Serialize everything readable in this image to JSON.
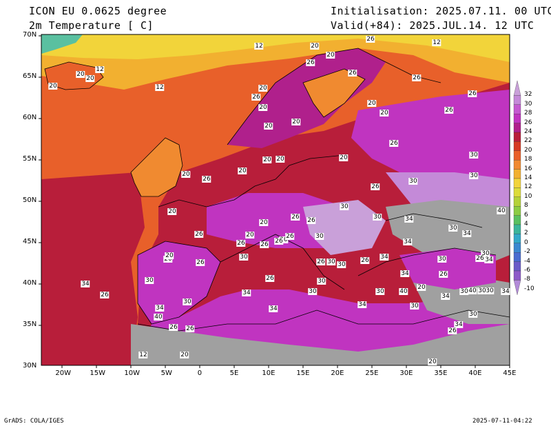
{
  "header": {
    "model": "ICON EU 0.0625 degree",
    "variable": "2m Temperature [ C]",
    "init": "Initialisation: 2025.07.11. 00 UTC",
    "valid": "Valid(+84): 2025.JUL.14. 12 UTC"
  },
  "axes": {
    "x_labels": [
      "20W",
      "15W",
      "10W",
      "5W",
      "0",
      "5E",
      "10E",
      "15E",
      "20E",
      "25E",
      "30E",
      "35E",
      "40E",
      "45E"
    ],
    "y_labels": [
      "70N",
      "65N",
      "60N",
      "55N",
      "50N",
      "45N",
      "40N",
      "35N",
      "30N"
    ],
    "xlim": [
      -23,
      45
    ],
    "ylim": [
      30,
      70
    ]
  },
  "colorbar": {
    "labels": [
      "32",
      "30",
      "28",
      "26",
      "24",
      "22",
      "20",
      "18",
      "16",
      "14",
      "12",
      "10",
      "8",
      "6",
      "4",
      "2",
      "0",
      "-2",
      "-4",
      "-6",
      "-8",
      "-10"
    ],
    "colors": [
      "#c9a0d9",
      "#c48ad8",
      "#c45ad0",
      "#c034c0",
      "#b0208c",
      "#b81e3a",
      "#d63a24",
      "#e8602a",
      "#f08a30",
      "#f2b030",
      "#f2d43a",
      "#dcdc3a",
      "#b4d23a",
      "#8ccc44",
      "#5ac060",
      "#3cb49a",
      "#34a8c8",
      "#3c88d0",
      "#4a6cd0",
      "#6a5cc8",
      "#8c5ac8",
      "#b28ad8"
    ],
    "sea_gray": "#a0a0a0"
  },
  "contour_labels": [
    {
      "t": "12"
    },
    {
      "t": "20"
    },
    {
      "t": "26"
    },
    {
      "t": "20"
    },
    {
      "t": "12"
    },
    {
      "t": "20"
    },
    {
      "t": "20"
    },
    {
      "t": "12"
    },
    {
      "t": "20"
    },
    {
      "t": "12"
    },
    {
      "t": "26"
    },
    {
      "t": "26"
    },
    {
      "t": "26"
    },
    {
      "t": "20"
    },
    {
      "t": "20"
    },
    {
      "t": "26"
    },
    {
      "t": "20"
    },
    {
      "t": "20"
    },
    {
      "t": "20"
    },
    {
      "t": "20"
    },
    {
      "t": "26"
    },
    {
      "t": "20"
    },
    {
      "t": "20"
    },
    {
      "t": "20"
    },
    {
      "t": "26"
    },
    {
      "t": "20"
    },
    {
      "t": "26"
    },
    {
      "t": "26"
    },
    {
      "t": "30"
    },
    {
      "t": "30"
    },
    {
      "t": "26"
    },
    {
      "t": "20"
    },
    {
      "t": "30"
    },
    {
      "t": "30"
    },
    {
      "t": "20"
    },
    {
      "t": "20"
    },
    {
      "t": "26"
    },
    {
      "t": "26"
    },
    {
      "t": "30"
    },
    {
      "t": "34"
    },
    {
      "t": "30"
    },
    {
      "t": "26"
    },
    {
      "t": "34"
    },
    {
      "t": "34"
    },
    {
      "t": "40"
    },
    {
      "t": "30"
    },
    {
      "t": "26"
    },
    {
      "t": "20"
    },
    {
      "t": "26"
    },
    {
      "t": "26"
    },
    {
      "t": "26"
    },
    {
      "t": "30"
    },
    {
      "t": "20"
    },
    {
      "t": "20"
    },
    {
      "t": "30"
    },
    {
      "t": "26"
    },
    {
      "t": "26"
    },
    {
      "t": "30"
    },
    {
      "t": "26"
    },
    {
      "t": "30"
    },
    {
      "t": "30"
    },
    {
      "t": "34"
    },
    {
      "t": "30"
    },
    {
      "t": "26"
    },
    {
      "t": "34"
    },
    {
      "t": "26"
    },
    {
      "t": "30"
    },
    {
      "t": "34"
    },
    {
      "t": "26"
    },
    {
      "t": "30"
    },
    {
      "t": "34"
    },
    {
      "t": "26"
    },
    {
      "t": "30"
    },
    {
      "t": "30"
    },
    {
      "t": "34"
    },
    {
      "t": "30"
    },
    {
      "t": "34"
    },
    {
      "t": "30"
    },
    {
      "t": "40"
    },
    {
      "t": "30"
    },
    {
      "t": "34"
    },
    {
      "t": "40"
    },
    {
      "t": "30"
    },
    {
      "t": "34"
    },
    {
      "t": "30"
    },
    {
      "t": "34"
    },
    {
      "t": "40"
    },
    {
      "t": "34"
    },
    {
      "t": "30"
    },
    {
      "t": "34"
    },
    {
      "t": "26"
    },
    {
      "t": "20"
    },
    {
      "t": "26"
    },
    {
      "t": "26"
    },
    {
      "t": "20"
    },
    {
      "t": "12"
    },
    {
      "t": "20"
    }
  ],
  "footer": {
    "left": "GrADS: COLA/IGES",
    "right": "2025-07-11-04:22"
  }
}
